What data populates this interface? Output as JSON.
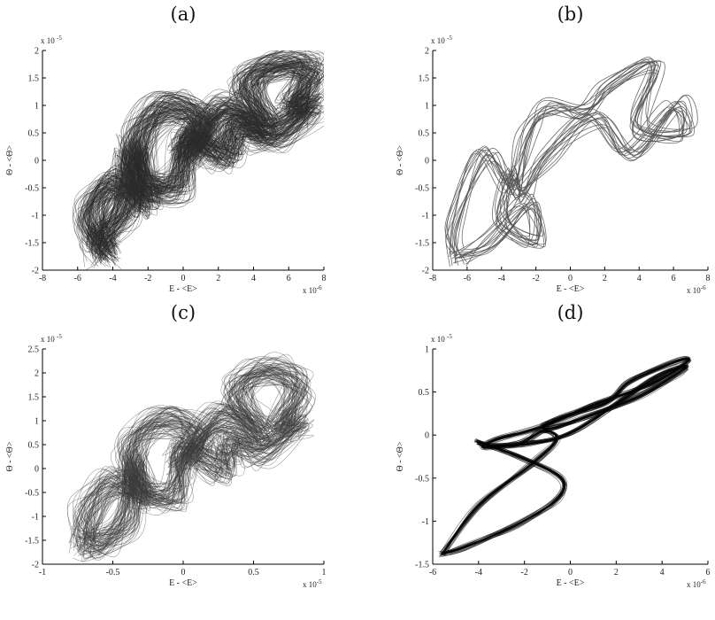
{
  "chart_data": [
    {
      "panel": "(a)",
      "type": "line",
      "xlabel": "E - <E>",
      "ylabel": "Θ - <Θ>",
      "xlim": [
        -8,
        8
      ],
      "ylim": [
        -2,
        2
      ],
      "xticks": [
        "-8",
        "-6",
        "-4",
        "-2",
        "0",
        "2",
        "4",
        "6",
        "8"
      ],
      "yticks": [
        "-2",
        "-1.5",
        "-1",
        "-0.5",
        "0",
        "0.5",
        "1",
        "1.5",
        "2"
      ],
      "x_multiplier": "x 10",
      "x_exponent": "-6",
      "y_multiplier": "x 10",
      "y_exponent": "-5",
      "grid": false,
      "trajectory": {
        "style": "dense",
        "color": "#2b2b2b",
        "loops": 120,
        "x": [
          -4.5,
          -5.3,
          -3.8,
          -2.2,
          -2.6,
          -1.0,
          1.2,
          0.2,
          2.4,
          4.6,
          3.6,
          5.4,
          7.3,
          6.1,
          7.2,
          5.0,
          3.0,
          2.3,
          0.3,
          -0.4,
          -2.6,
          -2.9,
          -3.3,
          -4.8,
          -4.5
        ],
        "y": [
          -1.65,
          -1.0,
          -0.4,
          -0.75,
          0.3,
          0.95,
          0.7,
          0.15,
          0.95,
          0.6,
          1.35,
          1.75,
          1.6,
          0.95,
          1.0,
          0.45,
          0.6,
          0.05,
          0.4,
          -0.45,
          -0.35,
          0.2,
          -0.85,
          -1.45,
          -1.65
        ]
      }
    },
    {
      "panel": "(b)",
      "type": "line",
      "xlabel": "E - <E>",
      "ylabel": "Θ - <Θ>",
      "xlim": [
        -8,
        8
      ],
      "ylim": [
        -2,
        2
      ],
      "xticks": [
        "-8",
        "-6",
        "-4",
        "-2",
        "0",
        "2",
        "4",
        "6",
        "8"
      ],
      "yticks": [
        "-2",
        "-1.5",
        "-1",
        "-0.5",
        "0",
        "0.5",
        "1",
        "1.5",
        "2"
      ],
      "x_multiplier": "x 10",
      "x_exponent": "-6",
      "y_multiplier": "x 10",
      "y_exponent": "-5",
      "grid": false,
      "trajectory": {
        "style": "sparse",
        "color": "#555555",
        "loops": 14,
        "x": [
          -6.5,
          -6.8,
          -5.0,
          -3.5,
          -2.4,
          -1.2,
          0.8,
          2.4,
          4.9,
          4.0,
          6.6,
          6.0,
          3.4,
          1.5,
          -1.5,
          -2.8,
          -3.5,
          -4.0,
          -1.8,
          -2.5,
          -4.6,
          -6.5
        ],
        "y": [
          -1.8,
          -1.2,
          0.1,
          -0.55,
          0.5,
          0.95,
          0.9,
          1.35,
          1.75,
          0.6,
          0.45,
          1.0,
          0.1,
          0.75,
          0.05,
          -0.6,
          -0.2,
          -1.1,
          -1.5,
          -0.75,
          -1.5,
          -1.8
        ]
      }
    },
    {
      "panel": "(c)",
      "type": "line",
      "xlabel": "E - <E>",
      "ylabel": "Θ - <Θ>",
      "xlim": [
        -1,
        1
      ],
      "ylim": [
        -2,
        2.5
      ],
      "xticks": [
        "-1",
        "-0.5",
        "0",
        "0.5",
        "1"
      ],
      "yticks": [
        "-2",
        "-1.5",
        "-1",
        "-0.5",
        "0",
        "0.5",
        "1",
        "1.5",
        "2",
        "2.5"
      ],
      "x_multiplier": "x 10",
      "x_exponent": "-5",
      "y_multiplier": "x 10",
      "y_exponent": "-5",
      "grid": false,
      "trajectory": {
        "style": "dense",
        "color": "#3d3d3d",
        "loops": 75,
        "x": [
          -0.7,
          -0.68,
          -0.48,
          -0.3,
          -0.38,
          -0.15,
          0.1,
          -0.02,
          0.28,
          0.55,
          0.38,
          0.6,
          0.82,
          0.68,
          0.8,
          0.55,
          0.33,
          0.28,
          0.02,
          -0.06,
          -0.32,
          -0.35,
          -0.4,
          -0.6,
          -0.7
        ],
        "y": [
          -1.55,
          -0.9,
          -0.25,
          -0.6,
          0.4,
          1.0,
          0.7,
          0.15,
          1.1,
          0.75,
          1.55,
          2.05,
          1.7,
          0.9,
          1.0,
          0.35,
          0.6,
          0.0,
          0.35,
          -0.55,
          -0.45,
          0.1,
          -1.05,
          -1.55,
          -1.55
        ]
      }
    },
    {
      "panel": "(d)",
      "type": "line",
      "xlabel": "E - <E>",
      "ylabel": "Θ - <Θ>",
      "xlim": [
        -6,
        6
      ],
      "ylim": [
        -1.5,
        1
      ],
      "xticks": [
        "-6",
        "-4",
        "-2",
        "0",
        "2",
        "4",
        "6"
      ],
      "yticks": [
        "-1.5",
        "-1",
        "-0.5",
        "0",
        "0.5",
        "1"
      ],
      "x_multiplier": "x 10",
      "x_exponent": "-6",
      "y_multiplier": "x 10",
      "y_exponent": "-5",
      "grid": false,
      "trajectory": {
        "style": "band",
        "color": "#111111",
        "loops": 26,
        "x": [
          -5.6,
          -4.0,
          -1.6,
          -0.6,
          -1.2,
          -2.2,
          -3.8,
          -3.2,
          -1.2,
          1.0,
          3.6,
          5.1,
          4.7,
          2.6,
          1.6,
          -0.4,
          -1.2,
          -0.8,
          0.6,
          3.0,
          4.6,
          5.0,
          3.6,
          0.2,
          -1.8,
          -3.4,
          -4.0,
          -2.2,
          -0.4,
          -0.6,
          -2.4,
          -4.6,
          -5.6
        ],
        "y": [
          -1.38,
          -0.82,
          -0.32,
          -0.05,
          0.05,
          -0.1,
          -0.14,
          -0.05,
          0.1,
          0.35,
          0.6,
          0.85,
          0.86,
          0.62,
          0.38,
          0.2,
          0.1,
          0.08,
          0.2,
          0.45,
          0.7,
          0.8,
          0.65,
          0.05,
          -0.1,
          -0.12,
          -0.08,
          -0.25,
          -0.5,
          -0.75,
          -1.05,
          -1.3,
          -1.38
        ]
      }
    }
  ]
}
